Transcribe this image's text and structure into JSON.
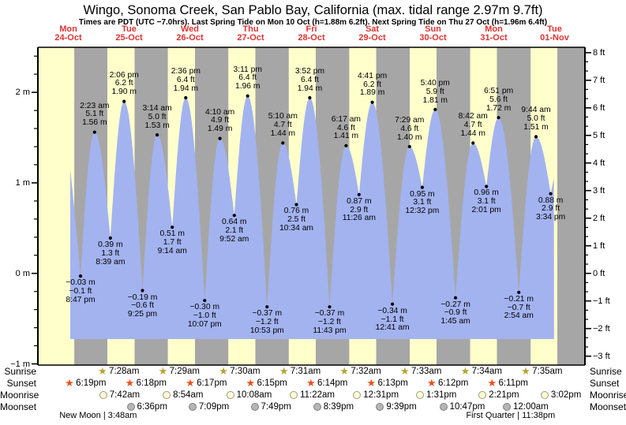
{
  "title": "Wingo, Sonoma Creek, San Pablo Bay, California (max. tidal range 2.97m 9.7ft)",
  "subtitle": "Times are PDT (UTC −7.0hrs). Last Spring Tide on Mon 10 Oct (h=1.88m 6.2ft). Next Spring Tide on Thu 27 Oct (h=1.96m 6.4ft)",
  "colors": {
    "day_band": "#ffffcc",
    "night_band": "#a6a6a6",
    "tide_fill": "#a3b3f0",
    "date_red": "#dd3333",
    "text": "#000000",
    "sunrise_star": "#b3a433",
    "sunset_star": "#e8501f",
    "moonrise_fill": "#ffffd6",
    "moonrise_border": "#9a9a80",
    "moonset_fill": "#b5b5b5",
    "moonset_border": "#808080"
  },
  "days": [
    {
      "name": "Mon",
      "date": "24-Oct"
    },
    {
      "name": "Tue",
      "date": "25-Oct"
    },
    {
      "name": "Wed",
      "date": "26-Oct"
    },
    {
      "name": "Thu",
      "date": "27-Oct"
    },
    {
      "name": "Fri",
      "date": "28-Oct"
    },
    {
      "name": "Sat",
      "date": "29-Oct"
    },
    {
      "name": "Sun",
      "date": "30-Oct"
    },
    {
      "name": "Mon",
      "date": "31-Oct"
    },
    {
      "name": "Tue",
      "date": "01-Nov"
    }
  ],
  "y_axis_left": {
    "unit": "m",
    "ticks": [
      {
        "v": 2,
        "label": "2 m"
      },
      {
        "v": 1,
        "label": "1 m"
      },
      {
        "v": 0,
        "label": "0 m"
      },
      {
        "v": -1,
        "label": "−1 m"
      }
    ]
  },
  "y_axis_right": {
    "unit": "ft",
    "ticks": [
      {
        "v": 8,
        "label": "8 ft"
      },
      {
        "v": 7,
        "label": "7 ft"
      },
      {
        "v": 6,
        "label": "6 ft"
      },
      {
        "v": 5,
        "label": "5 ft"
      },
      {
        "v": 4,
        "label": "4 ft"
      },
      {
        "v": 3,
        "label": "3 ft"
      },
      {
        "v": 2,
        "label": "2 ft"
      },
      {
        "v": 1,
        "label": "1 ft"
      },
      {
        "v": 0,
        "label": "0 ft"
      },
      {
        "v": -1,
        "label": "−1 ft"
      },
      {
        "v": -2,
        "label": "−2 ft"
      },
      {
        "v": -3,
        "label": "−3 ft"
      }
    ]
  },
  "chart_data": {
    "type": "area",
    "title": "Wingo, Sonoma Creek, San Pablo Bay, California tide heights",
    "x_axis": {
      "start": "Mon 24-Oct",
      "end": "Tue 01-Nov",
      "unit": "hours since Mon 24-Oct 00:00 PDT"
    },
    "ylabel_left": "meters",
    "ylabel_right": "feet",
    "ylim_m": [
      -1.01,
      2.5
    ],
    "tide_events": [
      {
        "day": 0,
        "type": "low",
        "time": "8:47 pm",
        "t": 20.783,
        "m": -0.03,
        "ft": -0.1
      },
      {
        "day": 1,
        "type": "high",
        "time": "2:23 am",
        "t": 26.383,
        "m": 1.56,
        "ft": 5.1
      },
      {
        "day": 1,
        "type": "low",
        "time": "8:39 am",
        "t": 32.65,
        "m": 0.39,
        "ft": 1.3
      },
      {
        "day": 1,
        "type": "high",
        "time": "2:06 pm",
        "t": 38.1,
        "m": 1.9,
        "ft": 6.2
      },
      {
        "day": 1,
        "type": "low",
        "time": "9:25 pm",
        "t": 45.417,
        "m": -0.19,
        "ft": -0.6
      },
      {
        "day": 2,
        "type": "high",
        "time": "3:14 am",
        "t": 51.233,
        "m": 1.53,
        "ft": 5.0
      },
      {
        "day": 2,
        "type": "low",
        "time": "9:14 am",
        "t": 57.233,
        "m": 0.51,
        "ft": 1.7
      },
      {
        "day": 2,
        "type": "high",
        "time": "2:36 pm",
        "t": 62.6,
        "m": 1.94,
        "ft": 6.4
      },
      {
        "day": 2,
        "type": "low",
        "time": "10:07 pm",
        "t": 70.117,
        "m": -0.3,
        "ft": -1.0
      },
      {
        "day": 3,
        "type": "high",
        "time": "4:10 am",
        "t": 76.167,
        "m": 1.49,
        "ft": 4.9
      },
      {
        "day": 3,
        "type": "low",
        "time": "9:52 am",
        "t": 81.867,
        "m": 0.64,
        "ft": 2.1
      },
      {
        "day": 3,
        "type": "high",
        "time": "3:11 pm",
        "t": 87.183,
        "m": 1.96,
        "ft": 6.4
      },
      {
        "day": 3,
        "type": "low",
        "time": "10:53 pm",
        "t": 94.883,
        "m": -0.37,
        "ft": -1.2
      },
      {
        "day": 4,
        "type": "high",
        "time": "5:10 am",
        "t": 101.167,
        "m": 1.44,
        "ft": 4.7
      },
      {
        "day": 4,
        "type": "low",
        "time": "10:34 am",
        "t": 106.567,
        "m": 0.76,
        "ft": 2.5
      },
      {
        "day": 4,
        "type": "high",
        "time": "3:52 pm",
        "t": 111.867,
        "m": 1.94,
        "ft": 6.4
      },
      {
        "day": 4,
        "type": "low",
        "time": "11:43 pm",
        "t": 119.717,
        "m": -0.37,
        "ft": -1.2
      },
      {
        "day": 5,
        "type": "high",
        "time": "6:17 am",
        "t": 126.283,
        "m": 1.41,
        "ft": 4.6
      },
      {
        "day": 5,
        "type": "low",
        "time": "11:26 am",
        "t": 131.433,
        "m": 0.87,
        "ft": 2.9
      },
      {
        "day": 5,
        "type": "high",
        "time": "4:41 pm",
        "t": 136.683,
        "m": 1.89,
        "ft": 6.2
      },
      {
        "day": 6,
        "type": "low",
        "time": "12:41 am",
        "t": 144.683,
        "m": -0.34,
        "ft": -1.1
      },
      {
        "day": 6,
        "type": "high",
        "time": "7:29 am",
        "t": 151.483,
        "m": 1.4,
        "ft": 4.6
      },
      {
        "day": 6,
        "type": "low",
        "time": "12:32 pm",
        "t": 156.533,
        "m": 0.95,
        "ft": 3.1
      },
      {
        "day": 6,
        "type": "high",
        "time": "5:40 pm",
        "t": 161.667,
        "m": 1.81,
        "ft": 5.9
      },
      {
        "day": 7,
        "type": "low",
        "time": "1:45 am",
        "t": 169.75,
        "m": -0.27,
        "ft": -0.9
      },
      {
        "day": 7,
        "type": "high",
        "time": "8:42 am",
        "t": 176.7,
        "m": 1.44,
        "ft": 4.7
      },
      {
        "day": 7,
        "type": "low",
        "time": "2:01 pm",
        "t": 182.017,
        "m": 0.96,
        "ft": 3.1
      },
      {
        "day": 7,
        "type": "high",
        "time": "6:51 pm",
        "t": 186.85,
        "m": 1.72,
        "ft": 5.6
      },
      {
        "day": 8,
        "type": "low",
        "time": "2:54 am",
        "t": 194.9,
        "m": -0.21,
        "ft": -0.7
      },
      {
        "day": 8,
        "type": "high",
        "time": "9:44 am",
        "t": 201.733,
        "m": 1.51,
        "ft": 5.0
      },
      {
        "day": 8,
        "type": "low",
        "time": "3:34 pm",
        "t": 207.567,
        "m": 0.88,
        "ft": 2.9
      }
    ],
    "curve": {
      "pre": {
        "t": 11.0,
        "h": 1.9
      },
      "post": {
        "t": 214.5,
        "h": 1.5
      },
      "start_t": 16.71,
      "end_t": 208.9,
      "fill_bottom_m": -0.726
    },
    "day_night_shading": [
      {
        "rise": 3.86,
        "set": 18.317
      },
      {
        "rise": 31.467,
        "set": 42.3
      },
      {
        "rise": 55.483,
        "set": 66.283
      },
      {
        "rise": 79.5,
        "set": 90.25
      },
      {
        "rise": 103.517,
        "set": 114.233
      },
      {
        "rise": 127.533,
        "set": 138.217
      },
      {
        "rise": 151.55,
        "set": 162.2
      },
      {
        "rise": 175.567,
        "set": 186.183
      },
      {
        "rise": 199.583,
        "set": 210.167
      }
    ]
  },
  "astro": {
    "rows": [
      {
        "label": "Sunrise",
        "icon": "sunrise-star",
        "entries": [
          {
            "time": "7:28am",
            "t": 31.467
          },
          {
            "time": "7:29am",
            "t": 55.483
          },
          {
            "time": "7:30am",
            "t": 79.5
          },
          {
            "time": "7:31am",
            "t": 103.517
          },
          {
            "time": "7:32am",
            "t": 127.533
          },
          {
            "time": "7:33am",
            "t": 151.55
          },
          {
            "time": "7:34am",
            "t": 175.567
          },
          {
            "time": "7:35am",
            "t": 199.583
          }
        ]
      },
      {
        "label": "Sunset",
        "icon": "sunset-star",
        "entries": [
          {
            "time": "6:19pm",
            "t": 18.317
          },
          {
            "time": "6:18pm",
            "t": 42.3
          },
          {
            "time": "6:17pm",
            "t": 66.283
          },
          {
            "time": "6:15pm",
            "t": 90.25
          },
          {
            "time": "6:14pm",
            "t": 114.233
          },
          {
            "time": "6:13pm",
            "t": 138.217
          },
          {
            "time": "6:12pm",
            "t": 162.2
          },
          {
            "time": "6:11pm",
            "t": 186.183
          }
        ]
      },
      {
        "label": "Moonrise",
        "icon": "moonrise-circle",
        "entries": [
          {
            "time": "7:42am",
            "t": 31.7
          },
          {
            "time": "8:54am",
            "t": 56.9
          },
          {
            "time": "10:08am",
            "t": 82.133
          },
          {
            "time": "11:22am",
            "t": 107.367
          },
          {
            "time": "12:31pm",
            "t": 132.517
          },
          {
            "time": "1:31pm",
            "t": 157.517
          },
          {
            "time": "2:21pm",
            "t": 182.35
          },
          {
            "time": "3:02pm",
            "t": 207.033
          }
        ]
      },
      {
        "label": "Moonset",
        "icon": "moonset-circle",
        "entries": [
          {
            "time": "6:36pm",
            "t": 42.6
          },
          {
            "time": "7:09pm",
            "t": 67.15
          },
          {
            "time": "7:49pm",
            "t": 91.817
          },
          {
            "time": "8:39pm",
            "t": 116.65
          },
          {
            "time": "9:39pm",
            "t": 141.65
          },
          {
            "time": "10:47pm",
            "t": 166.783
          },
          {
            "time": "12:00am",
            "t": 192.0
          }
        ]
      }
    ],
    "moon_phases": [
      {
        "text": "New Moon | 3:48am",
        "t": 27.8
      },
      {
        "text": "First Quarter | 11:38pm",
        "t": 191.633
      }
    ]
  }
}
